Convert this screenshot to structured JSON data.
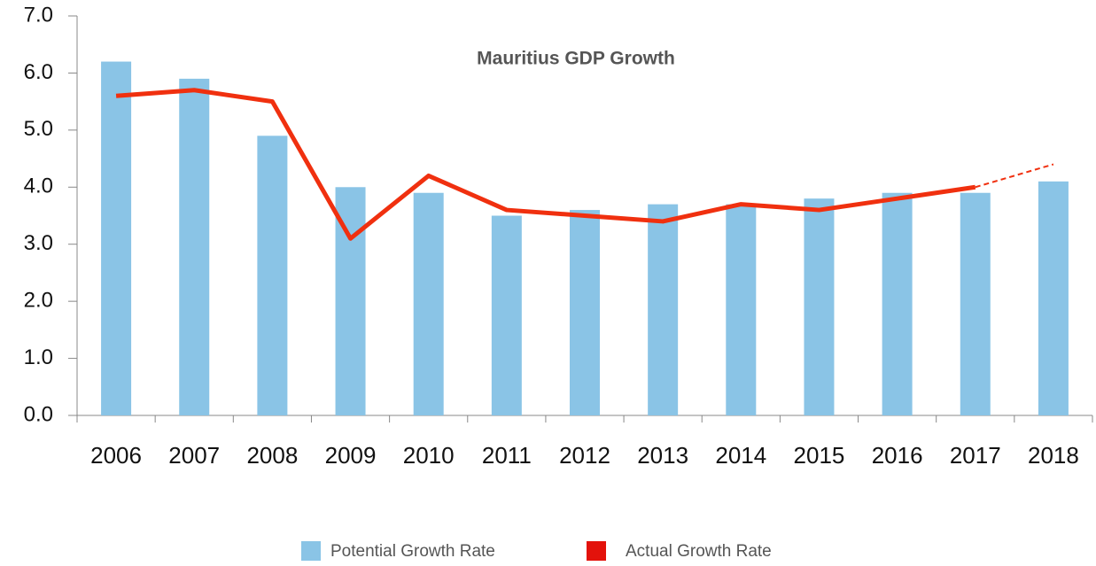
{
  "chart_data": {
    "type": "bar_line",
    "title": "Mauritius GDP Growth",
    "categories": [
      "2006",
      "2007",
      "2008",
      "2009",
      "2010",
      "2011",
      "2012",
      "2013",
      "2014",
      "2015",
      "2016",
      "2017",
      "2018"
    ],
    "series": [
      {
        "name": "Potential Growth Rate",
        "type": "bar",
        "color": "#8ac4e6",
        "legend_color": "#8ac4e6",
        "values": [
          6.2,
          5.9,
          4.9,
          4.0,
          3.9,
          3.5,
          3.6,
          3.7,
          3.7,
          3.8,
          3.9,
          3.9,
          4.1
        ]
      },
      {
        "name": "Actual Growth Rate",
        "type": "line",
        "color": "#f0300f",
        "legend_color": "#e3120b",
        "values": [
          5.6,
          5.7,
          5.5,
          3.1,
          4.2,
          3.6,
          3.5,
          3.4,
          3.7,
          3.6,
          3.8,
          4.0,
          4.4
        ],
        "dash_from_category": "2017"
      }
    ],
    "ylim": [
      0,
      7
    ],
    "yticks": [
      {
        "value": 0,
        "label": "0.0"
      },
      {
        "value": 1,
        "label": "1.0"
      },
      {
        "value": 2,
        "label": "2.0"
      },
      {
        "value": 3,
        "label": "3.0"
      },
      {
        "value": 4,
        "label": "4.0"
      },
      {
        "value": 5,
        "label": "5.0"
      },
      {
        "value": 6,
        "label": "6.0"
      },
      {
        "value": 7,
        "label": "7.0"
      }
    ],
    "grid": false,
    "legend": "bottom"
  }
}
